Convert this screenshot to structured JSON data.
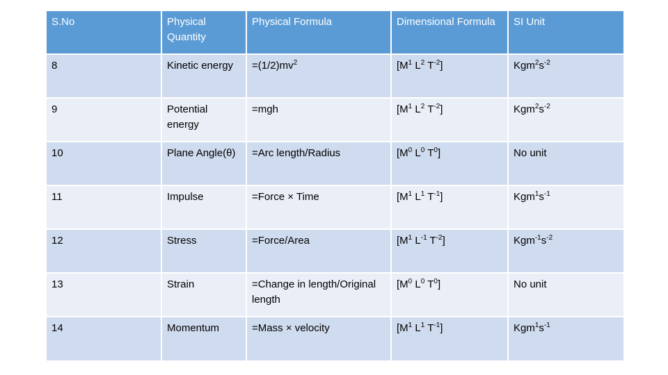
{
  "header": {
    "sno": "S.No",
    "quantity": "Physical Quantity",
    "formula": "Physical Formula",
    "dimensional": "Dimensional Formula",
    "si_unit": "SI Unit"
  },
  "rows": [
    {
      "sno": "8",
      "quantity": "Kinetic energy",
      "formula_base": "=(1/2)mv",
      "formula_exp": "2",
      "dim": {
        "M": "1",
        "L": "2",
        "T": "-2"
      },
      "unit": {
        "base": "Kgm",
        "e1": "2",
        "mid": "s",
        "e2": "-2"
      }
    },
    {
      "sno": "9",
      "quantity": "Potential energy",
      "formula_base": "=mgh",
      "formula_exp": "",
      "dim": {
        "M": "1",
        "L": "2",
        "T": "-2"
      },
      "unit": {
        "base": "Kgm",
        "e1": "2",
        "mid": "s",
        "e2": "-2"
      }
    },
    {
      "sno": "10",
      "quantity": "Plane Angle(θ)",
      "formula_base": "=Arc length/Radius",
      "formula_exp": "",
      "dim": {
        "M": "0",
        "L": "0",
        "T": "0"
      },
      "unit": {
        "base": "No unit",
        "e1": "",
        "mid": "",
        "e2": ""
      }
    },
    {
      "sno": "11",
      "quantity": "Impulse",
      "formula_base": "=Force × Time",
      "formula_exp": "",
      "dim": {
        "M": "1",
        "L": "1",
        "T": "-1"
      },
      "unit": {
        "base": "Kgm",
        "e1": "1",
        "mid": "s",
        "e2": "-1"
      }
    },
    {
      "sno": "12",
      "quantity": "Stress",
      "formula_base": "=Force/Area",
      "formula_exp": "",
      "dim": {
        "M": "1",
        "L": "-1",
        "T": "-2"
      },
      "unit": {
        "base": "Kgm",
        "e1": "-1",
        "mid": "s",
        "e2": "-2"
      }
    },
    {
      "sno": "13",
      "quantity": "Strain",
      "formula_base": "=Change in length/Original length",
      "formula_exp": "",
      "dim": {
        "M": "0",
        "L": "0",
        "T": "0"
      },
      "unit": {
        "base": "No unit",
        "e1": "",
        "mid": "",
        "e2": ""
      }
    },
    {
      "sno": "14",
      "quantity": "Momentum",
      "formula_base": "=Mass × velocity",
      "formula_exp": "",
      "dim": {
        "M": "1",
        "L": "1",
        "T": "-1"
      },
      "unit": {
        "base": "Kgm",
        "e1": "1",
        "mid": "s",
        "e2": "-1"
      }
    }
  ]
}
